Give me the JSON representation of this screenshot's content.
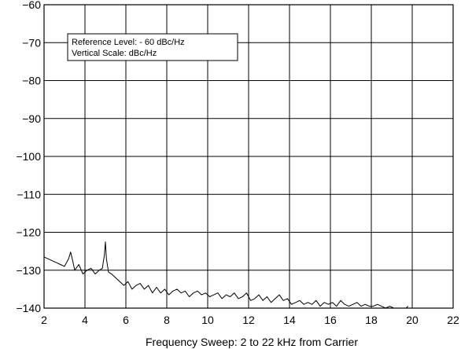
{
  "chart_data": {
    "type": "line",
    "xlabel": "Frequency Sweep: 2 to 22 kHz from Carrier",
    "ylabel": "",
    "xlim": [
      2,
      22
    ],
    "ylim": [
      -140,
      -60
    ],
    "xticks": [
      2,
      4,
      6,
      8,
      10,
      12,
      14,
      16,
      18,
      20,
      22
    ],
    "yticks": [
      -60,
      -70,
      -80,
      -90,
      -100,
      -110,
      -120,
      -130,
      -140
    ],
    "xtick_labels": [
      "2",
      "4",
      "6",
      "8",
      "10",
      "12",
      "14",
      "16",
      "18",
      "20",
      "22"
    ],
    "ytick_labels": [
      "−60",
      "−70",
      "−80",
      "−90",
      "−100",
      "−110",
      "−120",
      "−130",
      "−140"
    ],
    "grid": true,
    "annotation": {
      "lines": [
        "Reference Level: - 60 dBc/Hz",
        "Vertical Scale: dBc/Hz"
      ],
      "placement": "top-left"
    },
    "series": [
      {
        "x": [
          2.0,
          2.2,
          2.4,
          2.6,
          2.8,
          3.0,
          3.2,
          3.3,
          3.4,
          3.5,
          3.7,
          3.9,
          4.1,
          4.3,
          4.5,
          4.7,
          4.85,
          4.95,
          5.0,
          5.05,
          5.15,
          5.3,
          5.5,
          5.7,
          5.9,
          6.1,
          6.3,
          6.5,
          6.7,
          6.9,
          7.1,
          7.3,
          7.5,
          7.7,
          7.9,
          8.1,
          8.3,
          8.5,
          8.7,
          8.9,
          9.1,
          9.3,
          9.5,
          9.7,
          9.9,
          10.1,
          10.3,
          10.5,
          10.7,
          10.9,
          11.1,
          11.3,
          11.5,
          11.7,
          11.9,
          12.1,
          12.3,
          12.5,
          12.7,
          12.9,
          13.1,
          13.3,
          13.5,
          13.7,
          13.9,
          14.1,
          14.3,
          14.5,
          14.7,
          14.9,
          15.1,
          15.3,
          15.5,
          15.7,
          15.9,
          16.1,
          16.3,
          16.5,
          16.7,
          16.9,
          17.1,
          17.3,
          17.5,
          17.7,
          17.9,
          18.1,
          18.3,
          18.5,
          18.7,
          18.9,
          19.1,
          19.3,
          19.5,
          19.7,
          19.8
        ],
        "y": [
          -126.5,
          -127,
          -127.5,
          -128,
          -128.5,
          -129,
          -127,
          -125.2,
          -127.5,
          -130,
          -128.5,
          -131,
          -130,
          -129.5,
          -131,
          -130,
          -129.5,
          -126,
          -122.5,
          -127,
          -130.5,
          -131,
          -132,
          -133,
          -134,
          -133,
          -135,
          -134,
          -133.5,
          -135,
          -134,
          -136,
          -134.5,
          -136,
          -135,
          -136.5,
          -135.5,
          -135,
          -136,
          -135.5,
          -137,
          -136,
          -135.5,
          -136.5,
          -136,
          -137,
          -136.5,
          -136,
          -137.5,
          -136.5,
          -137,
          -136,
          -137.5,
          -137,
          -136,
          -138,
          -137.5,
          -136.5,
          -138,
          -137,
          -138.5,
          -137.5,
          -136.5,
          -138,
          -137.5,
          -139,
          -138.5,
          -138,
          -139,
          -138.5,
          -139,
          -138,
          -139.5,
          -138.5,
          -139,
          -138.5,
          -139.5,
          -138,
          -139,
          -139.5,
          -139,
          -138.5,
          -139.5,
          -139,
          -139.5,
          -139.5,
          -139,
          -139.5,
          -140,
          -139.5,
          -140,
          -140,
          -140,
          -140,
          -139.5
        ]
      }
    ]
  }
}
